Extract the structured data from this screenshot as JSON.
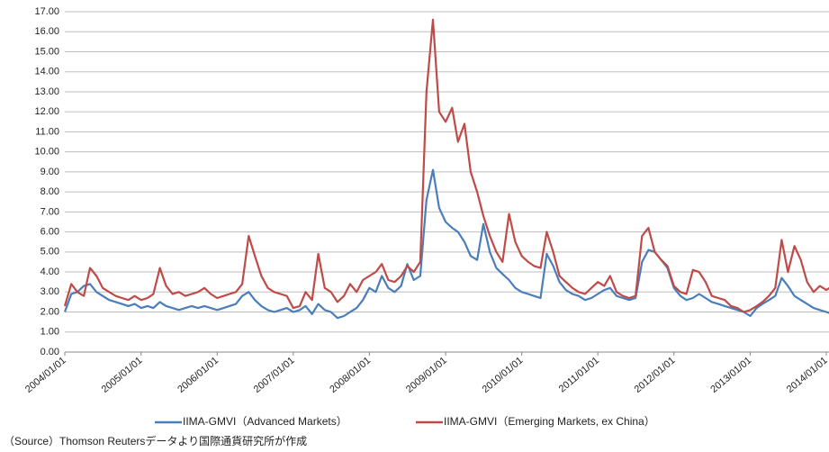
{
  "chart_data": {
    "type": "line",
    "x": [
      "2004/01/01",
      "2004/02/01",
      "2004/03/01",
      "2004/04/01",
      "2004/05/01",
      "2004/06/01",
      "2004/07/01",
      "2004/08/01",
      "2004/09/01",
      "2004/10/01",
      "2004/11/01",
      "2004/12/01",
      "2005/01/01",
      "2005/02/01",
      "2005/03/01",
      "2005/04/01",
      "2005/05/01",
      "2005/06/01",
      "2005/07/01",
      "2005/08/01",
      "2005/09/01",
      "2005/10/01",
      "2005/11/01",
      "2005/12/01",
      "2006/01/01",
      "2006/02/01",
      "2006/03/01",
      "2006/04/01",
      "2006/05/01",
      "2006/06/01",
      "2006/07/01",
      "2006/08/01",
      "2006/09/01",
      "2006/10/01",
      "2006/11/01",
      "2006/12/01",
      "2007/01/01",
      "2007/02/01",
      "2007/03/01",
      "2007/04/01",
      "2007/05/01",
      "2007/06/01",
      "2007/07/01",
      "2007/08/01",
      "2007/09/01",
      "2007/10/01",
      "2007/11/01",
      "2007/12/01",
      "2008/01/01",
      "2008/02/01",
      "2008/03/01",
      "2008/04/01",
      "2008/05/01",
      "2008/06/01",
      "2008/07/01",
      "2008/08/01",
      "2008/09/01",
      "2008/10/01",
      "2008/11/01",
      "2008/12/01",
      "2009/01/01",
      "2009/02/01",
      "2009/03/01",
      "2009/04/01",
      "2009/05/01",
      "2009/06/01",
      "2009/07/01",
      "2009/08/01",
      "2009/09/01",
      "2009/10/01",
      "2009/11/01",
      "2009/12/01",
      "2010/01/01",
      "2010/02/01",
      "2010/03/01",
      "2010/04/01",
      "2010/05/01",
      "2010/06/01",
      "2010/07/01",
      "2010/08/01",
      "2010/09/01",
      "2010/10/01",
      "2010/11/01",
      "2010/12/01",
      "2011/01/01",
      "2011/02/01",
      "2011/03/01",
      "2011/04/01",
      "2011/05/01",
      "2011/06/01",
      "2011/07/01",
      "2011/08/01",
      "2011/09/01",
      "2011/10/01",
      "2011/11/01",
      "2011/12/01",
      "2012/01/01",
      "2012/02/01",
      "2012/03/01",
      "2012/04/01",
      "2012/05/01",
      "2012/06/01",
      "2012/07/01",
      "2012/08/01",
      "2012/09/01",
      "2012/10/01",
      "2012/11/01",
      "2012/12/01",
      "2013/01/01",
      "2013/02/01",
      "2013/03/01",
      "2013/04/01",
      "2013/05/01",
      "2013/06/01",
      "2013/07/01",
      "2013/08/01",
      "2013/09/01",
      "2013/10/01",
      "2013/11/01",
      "2013/12/01",
      "2014/01/01",
      "2014/02/01"
    ],
    "series": [
      {
        "name": "IIMA-GMVI（Advanced Markets）",
        "color": "#4a7ebb",
        "values": [
          2.0,
          2.9,
          3.0,
          3.3,
          3.4,
          3.0,
          2.8,
          2.6,
          2.5,
          2.4,
          2.3,
          2.4,
          2.2,
          2.3,
          2.2,
          2.5,
          2.3,
          2.2,
          2.1,
          2.2,
          2.3,
          2.2,
          2.3,
          2.2,
          2.1,
          2.2,
          2.3,
          2.4,
          2.8,
          3.0,
          2.6,
          2.3,
          2.1,
          2.0,
          2.1,
          2.2,
          2.0,
          2.1,
          2.3,
          1.9,
          2.4,
          2.1,
          2.0,
          1.7,
          1.8,
          2.0,
          2.2,
          2.6,
          3.2,
          3.0,
          3.8,
          3.2,
          3.0,
          3.3,
          4.4,
          3.6,
          3.8,
          7.6,
          9.1,
          7.2,
          6.5,
          6.2,
          6.0,
          5.5,
          4.8,
          4.6,
          6.4,
          5.0,
          4.2,
          3.9,
          3.6,
          3.2,
          3.0,
          2.9,
          2.8,
          2.7,
          4.9,
          4.3,
          3.5,
          3.1,
          2.9,
          2.8,
          2.6,
          2.7,
          2.9,
          3.1,
          3.2,
          2.8,
          2.7,
          2.6,
          2.7,
          4.5,
          5.1,
          5.0,
          4.6,
          4.2,
          3.2,
          2.8,
          2.6,
          2.7,
          2.9,
          2.7,
          2.5,
          2.4,
          2.3,
          2.2,
          2.1,
          2.0,
          1.8,
          2.2,
          2.4,
          2.6,
          2.8,
          3.7,
          3.3,
          2.8,
          2.6,
          2.4,
          2.2,
          2.1,
          2.0,
          1.9
        ]
      },
      {
        "name": "IIMA-GMVI（Emerging Markets, ex China）",
        "color": "#be4b48",
        "values": [
          2.3,
          3.4,
          3.0,
          2.8,
          4.2,
          3.8,
          3.2,
          3.0,
          2.8,
          2.7,
          2.6,
          2.8,
          2.6,
          2.7,
          2.9,
          4.2,
          3.3,
          2.9,
          3.0,
          2.8,
          2.9,
          3.0,
          3.2,
          2.9,
          2.7,
          2.8,
          2.9,
          3.0,
          3.4,
          5.8,
          4.8,
          3.8,
          3.2,
          3.0,
          2.9,
          2.8,
          2.2,
          2.3,
          3.0,
          2.6,
          4.9,
          3.2,
          3.0,
          2.5,
          2.8,
          3.4,
          3.0,
          3.6,
          3.8,
          4.0,
          4.4,
          3.6,
          3.5,
          3.8,
          4.3,
          4.0,
          4.5,
          13.0,
          16.6,
          12.0,
          11.5,
          12.2,
          10.5,
          11.4,
          9.0,
          8.0,
          6.8,
          5.8,
          5.0,
          4.5,
          6.9,
          5.5,
          4.8,
          4.5,
          4.3,
          4.2,
          6.0,
          5.0,
          3.8,
          3.5,
          3.2,
          3.0,
          2.9,
          3.2,
          3.5,
          3.3,
          3.8,
          3.0,
          2.8,
          2.7,
          2.8,
          5.8,
          6.2,
          5.0,
          4.6,
          4.3,
          3.3,
          3.0,
          2.9,
          4.1,
          4.0,
          3.5,
          2.8,
          2.7,
          2.6,
          2.3,
          2.2,
          2.0,
          2.1,
          2.3,
          2.5,
          2.8,
          3.2,
          5.6,
          4.0,
          5.3,
          4.6,
          3.5,
          3.0,
          3.3,
          3.1,
          3.3
        ]
      }
    ],
    "xlim": [
      "2004/01/01",
      "2014/01/14"
    ],
    "xticks": [
      "2004/01/01",
      "2005/01/01",
      "2006/01/01",
      "2007/01/01",
      "2008/01/01",
      "2009/01/01",
      "2010/01/01",
      "2011/01/01",
      "2012/01/01",
      "2013/01/01",
      "2014/01/01"
    ],
    "ylim": [
      0,
      17
    ],
    "yticks": [
      {
        "value": 0,
        "label": "0.00"
      },
      {
        "value": 1,
        "label": "1.00"
      },
      {
        "value": 2,
        "label": "2.00"
      },
      {
        "value": 3,
        "label": "3.00"
      },
      {
        "value": 4,
        "label": "4.00"
      },
      {
        "value": 5,
        "label": "5.00"
      },
      {
        "value": 6,
        "label": "6.00"
      },
      {
        "value": 7,
        "label": "7.00"
      },
      {
        "value": 8,
        "label": "8.00"
      },
      {
        "value": 9,
        "label": "9.00"
      },
      {
        "value": 10,
        "label": "10.00"
      },
      {
        "value": 11,
        "label": "11.00"
      },
      {
        "value": 12,
        "label": "12.00"
      },
      {
        "value": 13,
        "label": "13.00"
      },
      {
        "value": 14,
        "label": "14.00"
      },
      {
        "value": 15,
        "label": "15.00"
      },
      {
        "value": 16,
        "label": "16.00"
      },
      {
        "value": 17,
        "label": "17.00"
      }
    ],
    "grid": true,
    "legend": "bottom",
    "source": "（Source）Thomson Reutersデータより国際通貨研究所が作成"
  }
}
